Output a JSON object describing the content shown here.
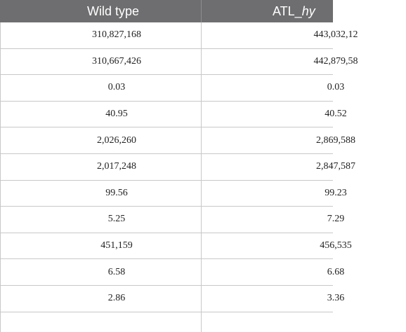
{
  "table": {
    "headers": [
      "Wild type",
      "ATL_hy"
    ],
    "rows": [
      [
        "310,827,168",
        "443,032,12"
      ],
      [
        "310,667,426",
        "442,879,58"
      ],
      [
        "0.03",
        "0.03"
      ],
      [
        "40.95",
        "40.52"
      ],
      [
        "2,026,260",
        "2,869,588"
      ],
      [
        "2,017,248",
        "2,847,587"
      ],
      [
        "99.56",
        "99.23"
      ],
      [
        "5.25",
        "7.29"
      ],
      [
        "451,159",
        "456,535"
      ],
      [
        "6.58",
        "6.68"
      ],
      [
        "2.86",
        "3.36"
      ]
    ]
  }
}
